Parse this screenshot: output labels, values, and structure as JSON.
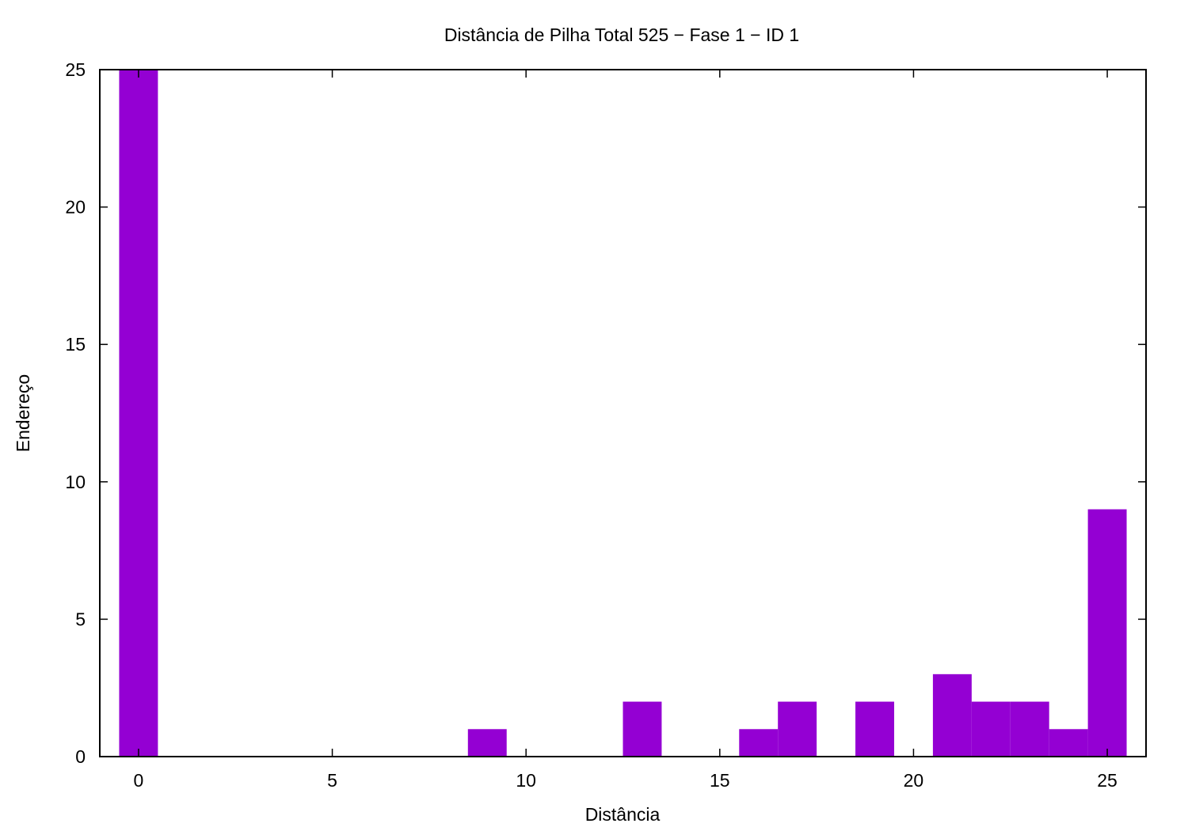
{
  "chart_data": {
    "type": "bar",
    "title": "Distância de Pilha Total 525 − Fase  1 − ID 1",
    "xlabel": "Distância",
    "ylabel": "Endereço",
    "xlim": [
      -1,
      26
    ],
    "ylim": [
      0,
      25
    ],
    "xticks": [
      0,
      5,
      10,
      15,
      20,
      25
    ],
    "yticks": [
      0,
      5,
      10,
      15,
      20,
      25
    ],
    "bar_width": 1,
    "grid": false,
    "legend": "none",
    "x": [
      0,
      9,
      13,
      16,
      17,
      19,
      21,
      22,
      23,
      24,
      25
    ],
    "values": [
      25,
      1,
      2,
      1,
      2,
      2,
      3,
      2,
      2,
      1,
      9
    ],
    "colors": {
      "bar": "#9400d3",
      "axis": "#000000"
    }
  }
}
